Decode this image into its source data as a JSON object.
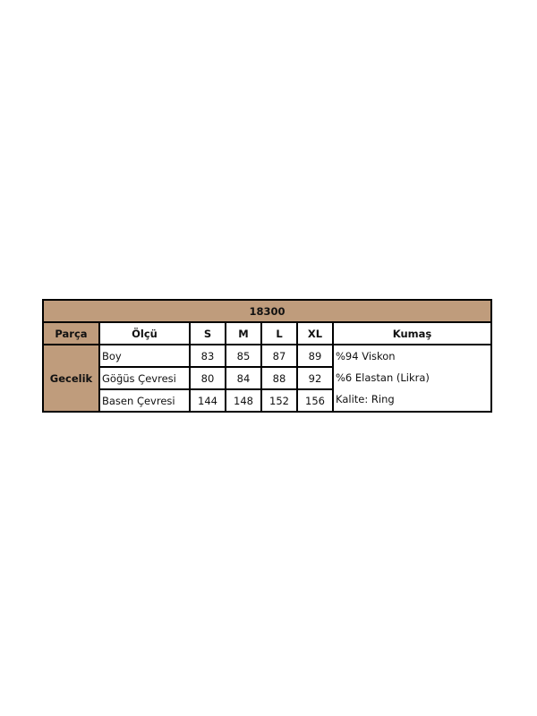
{
  "title": "18300",
  "headers": {
    "part": "Parça",
    "measure": "Ölçü",
    "sizes": [
      "S",
      "M",
      "L",
      "XL"
    ],
    "fabric": "Kumaş"
  },
  "part": "Gecelik",
  "rows": [
    {
      "label": "Boy",
      "values": [
        "83",
        "85",
        "87",
        "89"
      ]
    },
    {
      "label": "Göğüs Çevresi",
      "values": [
        "80",
        "84",
        "88",
        "92"
      ]
    },
    {
      "label": "Basen Çevresi",
      "values": [
        "144",
        "148",
        "152",
        "156"
      ]
    }
  ],
  "fabric_lines": [
    "%94 Viskon",
    "%6 Elastan (Likra)",
    "Kalite: Ring"
  ],
  "colors": {
    "header_bg": "#bf9c7c"
  }
}
